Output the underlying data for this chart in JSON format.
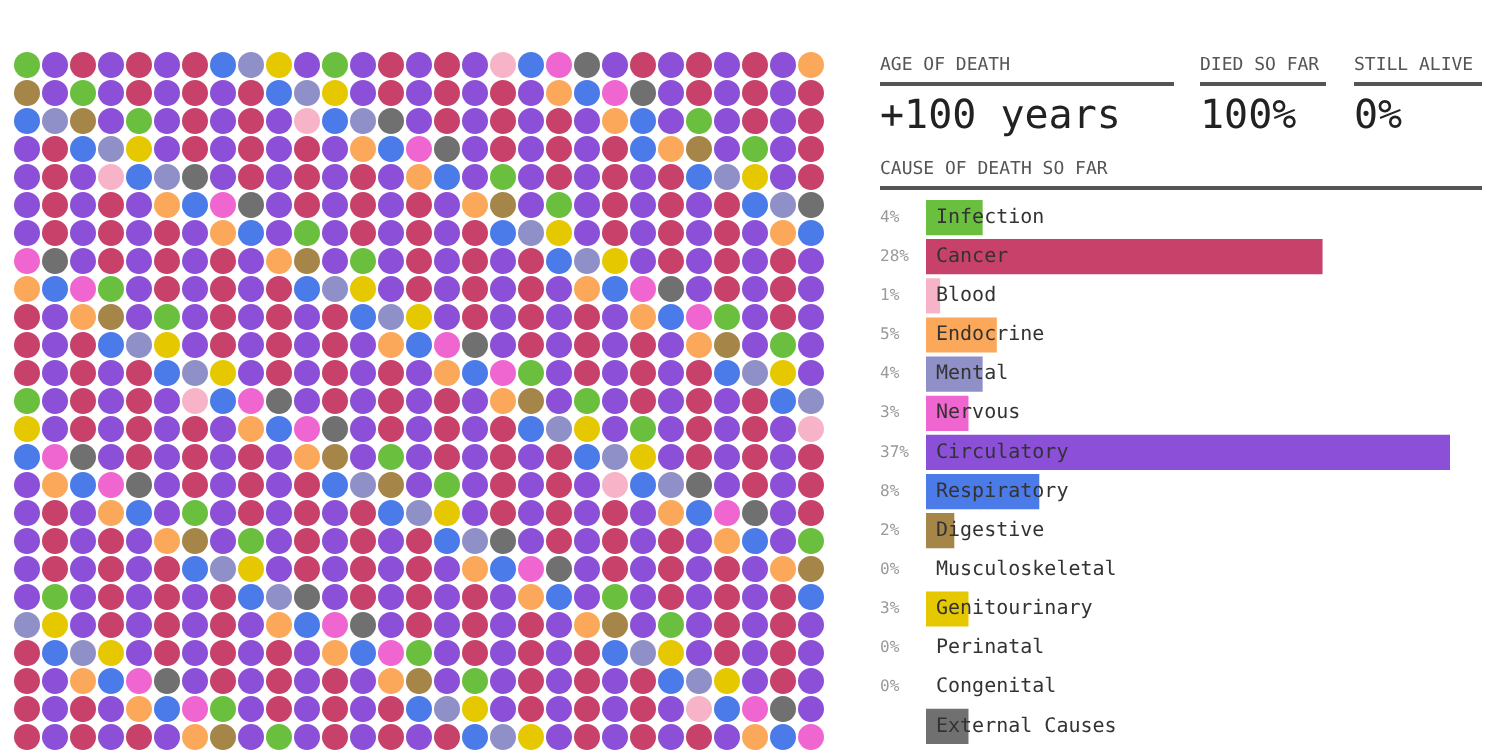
{
  "chart_data": {
    "type": "bar",
    "orientation": "horizontal",
    "title": "CAUSE OF DEATH SO FAR",
    "annotations": [
      "AGE OF DEATH",
      "DIED SO FAR",
      "STILL ALIVE",
      "+100 years",
      "100%",
      "0%"
    ],
    "categories": [
      "Infection",
      "Cancer",
      "Blood",
      "Endocrine",
      "Mental",
      "Nervous",
      "Circulatory",
      "Respiratory",
      "Digestive",
      "Musculoskeletal",
      "Genitourinary",
      "Perinatal",
      "Congenital",
      "External Causes"
    ],
    "values": [
      4,
      28,
      1,
      5,
      4,
      3,
      37,
      8,
      2,
      0,
      3,
      0,
      0,
      3
    ],
    "value_labels": [
      "4%",
      "28%",
      "1%",
      "5%",
      "4%",
      "3%",
      "37%",
      "8%",
      "2%",
      "0%",
      "3%",
      "0%",
      "0%",
      null
    ],
    "colors": [
      "#6abf3f",
      "#c8416b",
      "#f7b4c8",
      "#fca85a",
      "#9090c8",
      "#f066d0",
      "#8b4fd8",
      "#4a7be8",
      "#a58548",
      "#e05060",
      "#e6c800",
      "#d0d0d0",
      "#20d0b0",
      "#707070"
    ],
    "legend": false
  }
}
